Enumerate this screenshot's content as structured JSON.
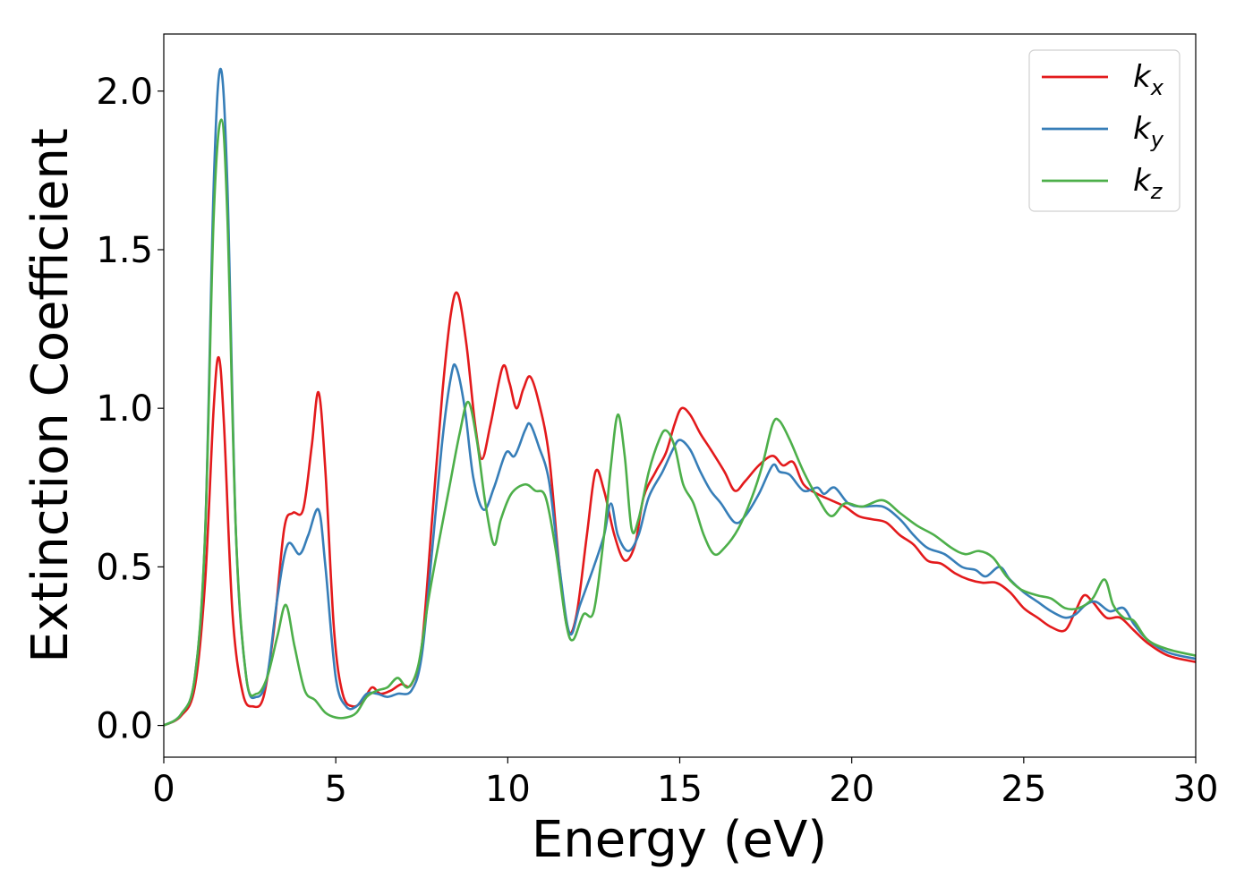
{
  "chart_data": {
    "type": "line",
    "xlabel": "Energy (eV)",
    "ylabel": "Extinction Coefficient",
    "xlim": [
      0,
      30
    ],
    "ylim": [
      -0.1,
      2.18
    ],
    "x_ticks": [
      0,
      5,
      10,
      15,
      20,
      25,
      30
    ],
    "x_tick_labels": [
      "0",
      "5",
      "10",
      "15",
      "20",
      "25",
      "30"
    ],
    "y_ticks": [
      0.0,
      0.5,
      1.0,
      1.5,
      2.0
    ],
    "y_tick_labels": [
      "0.0",
      "0.5",
      "1.0",
      "1.5",
      "2.0"
    ],
    "grid": false,
    "legend_position": "top-right",
    "series": [
      {
        "name": "k",
        "subscript": "x",
        "color": "#e31a1c",
        "points": [
          [
            0,
            0
          ],
          [
            0.5,
            0.03
          ],
          [
            0.9,
            0.12
          ],
          [
            1.2,
            0.45
          ],
          [
            1.45,
            1.0
          ],
          [
            1.6,
            1.16
          ],
          [
            1.75,
            0.95
          ],
          [
            2.0,
            0.35
          ],
          [
            2.3,
            0.1
          ],
          [
            2.6,
            0.06
          ],
          [
            2.9,
            0.09
          ],
          [
            3.2,
            0.3
          ],
          [
            3.5,
            0.62
          ],
          [
            3.75,
            0.67
          ],
          [
            4.05,
            0.68
          ],
          [
            4.3,
            0.88
          ],
          [
            4.5,
            1.05
          ],
          [
            4.7,
            0.8
          ],
          [
            4.95,
            0.3
          ],
          [
            5.2,
            0.1
          ],
          [
            5.5,
            0.06
          ],
          [
            5.8,
            0.08
          ],
          [
            6.05,
            0.12
          ],
          [
            6.3,
            0.1
          ],
          [
            6.6,
            0.11
          ],
          [
            6.9,
            0.13
          ],
          [
            7.2,
            0.13
          ],
          [
            7.5,
            0.25
          ],
          [
            7.8,
            0.65
          ],
          [
            8.1,
            1.05
          ],
          [
            8.35,
            1.3
          ],
          [
            8.55,
            1.36
          ],
          [
            8.8,
            1.2
          ],
          [
            9.05,
            0.95
          ],
          [
            9.25,
            0.84
          ],
          [
            9.5,
            0.95
          ],
          [
            9.85,
            1.13
          ],
          [
            10.05,
            1.08
          ],
          [
            10.25,
            1.0
          ],
          [
            10.45,
            1.06
          ],
          [
            10.65,
            1.1
          ],
          [
            10.9,
            1.02
          ],
          [
            11.2,
            0.85
          ],
          [
            11.5,
            0.5
          ],
          [
            11.75,
            0.3
          ],
          [
            12.0,
            0.35
          ],
          [
            12.3,
            0.6
          ],
          [
            12.55,
            0.8
          ],
          [
            12.8,
            0.74
          ],
          [
            13.1,
            0.6
          ],
          [
            13.4,
            0.52
          ],
          [
            13.7,
            0.57
          ],
          [
            13.95,
            0.72
          ],
          [
            14.3,
            0.8
          ],
          [
            14.6,
            0.86
          ],
          [
            14.85,
            0.95
          ],
          [
            15.05,
            1.0
          ],
          [
            15.3,
            0.98
          ],
          [
            15.6,
            0.92
          ],
          [
            15.9,
            0.87
          ],
          [
            16.3,
            0.8
          ],
          [
            16.6,
            0.74
          ],
          [
            16.9,
            0.77
          ],
          [
            17.3,
            0.82
          ],
          [
            17.7,
            0.85
          ],
          [
            18.0,
            0.82
          ],
          [
            18.3,
            0.83
          ],
          [
            18.6,
            0.76
          ],
          [
            19.0,
            0.73
          ],
          [
            19.4,
            0.71
          ],
          [
            19.8,
            0.69
          ],
          [
            20.2,
            0.66
          ],
          [
            20.6,
            0.65
          ],
          [
            21.0,
            0.64
          ],
          [
            21.4,
            0.6
          ],
          [
            21.8,
            0.57
          ],
          [
            22.2,
            0.52
          ],
          [
            22.6,
            0.51
          ],
          [
            23.0,
            0.48
          ],
          [
            23.4,
            0.46
          ],
          [
            23.8,
            0.45
          ],
          [
            24.2,
            0.45
          ],
          [
            24.6,
            0.42
          ],
          [
            25.0,
            0.37
          ],
          [
            25.4,
            0.34
          ],
          [
            25.8,
            0.31
          ],
          [
            26.2,
            0.3
          ],
          [
            26.5,
            0.36
          ],
          [
            26.75,
            0.41
          ],
          [
            27.0,
            0.39
          ],
          [
            27.4,
            0.34
          ],
          [
            27.8,
            0.34
          ],
          [
            28.2,
            0.3
          ],
          [
            28.6,
            0.26
          ],
          [
            29.2,
            0.22
          ],
          [
            30.0,
            0.2
          ]
        ]
      },
      {
        "name": "k",
        "subscript": "y",
        "color": "#377eb8",
        "points": [
          [
            0,
            0
          ],
          [
            0.5,
            0.035
          ],
          [
            0.9,
            0.15
          ],
          [
            1.2,
            0.6
          ],
          [
            1.45,
            1.7
          ],
          [
            1.65,
            2.07
          ],
          [
            1.85,
            1.7
          ],
          [
            2.1,
            0.6
          ],
          [
            2.4,
            0.15
          ],
          [
            2.7,
            0.09
          ],
          [
            3.0,
            0.15
          ],
          [
            3.3,
            0.4
          ],
          [
            3.6,
            0.57
          ],
          [
            3.95,
            0.54
          ],
          [
            4.2,
            0.6
          ],
          [
            4.5,
            0.68
          ],
          [
            4.7,
            0.5
          ],
          [
            5.0,
            0.15
          ],
          [
            5.3,
            0.06
          ],
          [
            5.6,
            0.06
          ],
          [
            5.9,
            0.1
          ],
          [
            6.2,
            0.1
          ],
          [
            6.5,
            0.09
          ],
          [
            6.8,
            0.1
          ],
          [
            7.2,
            0.11
          ],
          [
            7.5,
            0.22
          ],
          [
            7.8,
            0.55
          ],
          [
            8.1,
            0.9
          ],
          [
            8.35,
            1.1
          ],
          [
            8.5,
            1.13
          ],
          [
            8.75,
            1.0
          ],
          [
            9.0,
            0.78
          ],
          [
            9.3,
            0.68
          ],
          [
            9.6,
            0.75
          ],
          [
            9.95,
            0.86
          ],
          [
            10.2,
            0.85
          ],
          [
            10.5,
            0.93
          ],
          [
            10.65,
            0.95
          ],
          [
            10.9,
            0.88
          ],
          [
            11.2,
            0.77
          ],
          [
            11.5,
            0.5
          ],
          [
            11.8,
            0.29
          ],
          [
            12.1,
            0.38
          ],
          [
            12.5,
            0.5
          ],
          [
            12.8,
            0.6
          ],
          [
            13.0,
            0.7
          ],
          [
            13.2,
            0.6
          ],
          [
            13.5,
            0.55
          ],
          [
            13.8,
            0.6
          ],
          [
            14.1,
            0.72
          ],
          [
            14.5,
            0.8
          ],
          [
            14.8,
            0.87
          ],
          [
            15.0,
            0.9
          ],
          [
            15.3,
            0.87
          ],
          [
            15.6,
            0.8
          ],
          [
            15.9,
            0.74
          ],
          [
            16.2,
            0.7
          ],
          [
            16.6,
            0.64
          ],
          [
            16.9,
            0.66
          ],
          [
            17.3,
            0.73
          ],
          [
            17.7,
            0.82
          ],
          [
            17.9,
            0.8
          ],
          [
            18.2,
            0.79
          ],
          [
            18.6,
            0.74
          ],
          [
            19.0,
            0.75
          ],
          [
            19.2,
            0.73
          ],
          [
            19.5,
            0.75
          ],
          [
            19.9,
            0.7
          ],
          [
            20.3,
            0.69
          ],
          [
            20.9,
            0.69
          ],
          [
            21.4,
            0.65
          ],
          [
            21.8,
            0.6
          ],
          [
            22.2,
            0.56
          ],
          [
            22.7,
            0.54
          ],
          [
            23.2,
            0.5
          ],
          [
            23.6,
            0.49
          ],
          [
            23.9,
            0.47
          ],
          [
            24.3,
            0.5
          ],
          [
            24.6,
            0.46
          ],
          [
            25.0,
            0.42
          ],
          [
            25.4,
            0.39
          ],
          [
            25.8,
            0.36
          ],
          [
            26.2,
            0.34
          ],
          [
            26.5,
            0.35
          ],
          [
            26.8,
            0.38
          ],
          [
            27.1,
            0.39
          ],
          [
            27.5,
            0.36
          ],
          [
            27.9,
            0.37
          ],
          [
            28.2,
            0.32
          ],
          [
            28.6,
            0.27
          ],
          [
            29.2,
            0.23
          ],
          [
            30.0,
            0.21
          ]
        ]
      },
      {
        "name": "k",
        "subscript": "z",
        "color": "#4daf4a",
        "points": [
          [
            0,
            0
          ],
          [
            0.5,
            0.035
          ],
          [
            0.9,
            0.15
          ],
          [
            1.2,
            0.6
          ],
          [
            1.45,
            1.6
          ],
          [
            1.67,
            1.91
          ],
          [
            1.85,
            1.6
          ],
          [
            2.1,
            0.6
          ],
          [
            2.4,
            0.15
          ],
          [
            2.7,
            0.1
          ],
          [
            3.0,
            0.15
          ],
          [
            3.3,
            0.28
          ],
          [
            3.55,
            0.38
          ],
          [
            3.8,
            0.25
          ],
          [
            4.1,
            0.11
          ],
          [
            4.4,
            0.08
          ],
          [
            4.7,
            0.04
          ],
          [
            5.0,
            0.025
          ],
          [
            5.3,
            0.025
          ],
          [
            5.6,
            0.04
          ],
          [
            5.9,
            0.09
          ],
          [
            6.2,
            0.11
          ],
          [
            6.5,
            0.12
          ],
          [
            6.8,
            0.15
          ],
          [
            7.1,
            0.12
          ],
          [
            7.4,
            0.19
          ],
          [
            7.7,
            0.4
          ],
          [
            8.0,
            0.58
          ],
          [
            8.3,
            0.75
          ],
          [
            8.6,
            0.92
          ],
          [
            8.85,
            1.02
          ],
          [
            9.1,
            0.9
          ],
          [
            9.35,
            0.7
          ],
          [
            9.6,
            0.57
          ],
          [
            9.8,
            0.65
          ],
          [
            10.1,
            0.73
          ],
          [
            10.5,
            0.76
          ],
          [
            10.8,
            0.74
          ],
          [
            11.1,
            0.72
          ],
          [
            11.4,
            0.55
          ],
          [
            11.7,
            0.32
          ],
          [
            11.9,
            0.27
          ],
          [
            12.2,
            0.35
          ],
          [
            12.5,
            0.36
          ],
          [
            12.8,
            0.6
          ],
          [
            13.0,
            0.82
          ],
          [
            13.2,
            0.98
          ],
          [
            13.4,
            0.85
          ],
          [
            13.6,
            0.62
          ],
          [
            13.8,
            0.65
          ],
          [
            14.1,
            0.8
          ],
          [
            14.4,
            0.9
          ],
          [
            14.6,
            0.93
          ],
          [
            14.85,
            0.88
          ],
          [
            15.1,
            0.76
          ],
          [
            15.4,
            0.7
          ],
          [
            15.7,
            0.6
          ],
          [
            16.0,
            0.54
          ],
          [
            16.3,
            0.56
          ],
          [
            16.7,
            0.62
          ],
          [
            17.1,
            0.72
          ],
          [
            17.4,
            0.82
          ],
          [
            17.7,
            0.95
          ],
          [
            17.9,
            0.96
          ],
          [
            18.2,
            0.9
          ],
          [
            18.6,
            0.8
          ],
          [
            19.0,
            0.72
          ],
          [
            19.4,
            0.66
          ],
          [
            19.8,
            0.7
          ],
          [
            20.3,
            0.69
          ],
          [
            20.9,
            0.71
          ],
          [
            21.4,
            0.67
          ],
          [
            21.9,
            0.63
          ],
          [
            22.4,
            0.6
          ],
          [
            22.9,
            0.56
          ],
          [
            23.3,
            0.54
          ],
          [
            23.7,
            0.55
          ],
          [
            24.1,
            0.53
          ],
          [
            24.5,
            0.47
          ],
          [
            24.9,
            0.43
          ],
          [
            25.4,
            0.41
          ],
          [
            25.8,
            0.4
          ],
          [
            26.2,
            0.37
          ],
          [
            26.6,
            0.37
          ],
          [
            27.0,
            0.4
          ],
          [
            27.35,
            0.46
          ],
          [
            27.6,
            0.38
          ],
          [
            27.9,
            0.34
          ],
          [
            28.2,
            0.33
          ],
          [
            28.6,
            0.27
          ],
          [
            29.2,
            0.24
          ],
          [
            30.0,
            0.22
          ]
        ]
      }
    ]
  }
}
